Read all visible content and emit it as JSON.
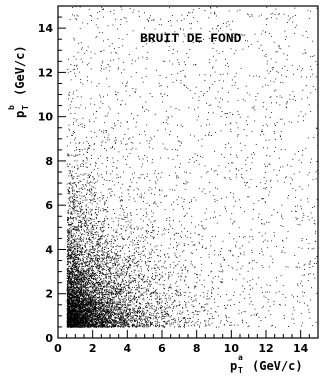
{
  "chart_data": {
    "type": "scatter",
    "title": "BRUIT DE FOND",
    "xlabel": {
      "base": "p",
      "sup": "a",
      "sub": "T",
      "unit": "(GeV/c)"
    },
    "ylabel": {
      "base": "p",
      "sup": "b",
      "sub": "T",
      "unit": "(GeV/c)"
    },
    "xlim": [
      0,
      15
    ],
    "ylim": [
      0,
      15
    ],
    "x_ticks": [
      "0",
      "2",
      "4",
      "6",
      "8",
      "10",
      "12",
      "14"
    ],
    "y_ticks": [
      "0",
      "2",
      "4",
      "6",
      "8",
      "10",
      "12",
      "14"
    ],
    "x_tick_values": [
      0,
      2,
      4,
      6,
      8,
      10,
      12,
      14
    ],
    "y_tick_values": [
      0,
      2,
      4,
      6,
      8,
      10,
      12,
      14
    ],
    "point_min": [
      0.5,
      0.5
    ],
    "grid": false,
    "marker_color": "#000000",
    "description_of_density": "dense cluster near (0.5–3, 0.5–3) falling off with increasing pT"
  }
}
